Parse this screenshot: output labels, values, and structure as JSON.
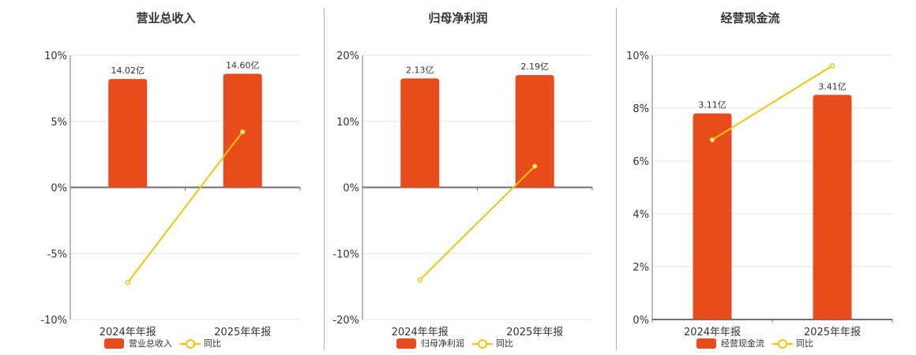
{
  "colors": {
    "bar": "#e84c1c",
    "line": "#f1c40f",
    "grid": "#dfe4ee",
    "axis": "#6e7079"
  },
  "legend": {
    "line_label": "同比"
  },
  "chart_data": [
    {
      "type": "bar+line",
      "title": "营业总收入",
      "categories": [
        "2024年年报",
        "2025年年报"
      ],
      "series": [
        {
          "name": "营业总收入",
          "type": "bar",
          "values": [
            14.02,
            14.6
          ],
          "unit": "亿",
          "labels": [
            "14.02亿",
            "14.60亿"
          ]
        },
        {
          "name": "同比",
          "type": "line",
          "values": [
            -7.2,
            4.2
          ],
          "unit": "%"
        }
      ],
      "yticks": [
        "10%",
        "5%",
        "0%",
        "-5%",
        "-10%"
      ],
      "ylim": [
        -10,
        10
      ],
      "bar_heights_pct": [
        8.2,
        8.6
      ],
      "grid": true,
      "legend_position": "bottom"
    },
    {
      "type": "bar+line",
      "title": "归母净利润",
      "categories": [
        "2024年年报",
        "2025年年报"
      ],
      "series": [
        {
          "name": "归母净利润",
          "type": "bar",
          "values": [
            2.13,
            2.19
          ],
          "unit": "亿",
          "labels": [
            "2.13亿",
            "2.19亿"
          ]
        },
        {
          "name": "同比",
          "type": "line",
          "values": [
            -14.0,
            3.2
          ],
          "unit": "%"
        }
      ],
      "yticks": [
        "20%",
        "10%",
        "0%",
        "-10%",
        "-20%"
      ],
      "ylim": [
        -20,
        20
      ],
      "bar_heights_pct": [
        16.5,
        17.0
      ],
      "grid": true,
      "legend_position": "bottom"
    },
    {
      "type": "bar+line",
      "title": "经营现金流",
      "categories": [
        "2024年年报",
        "2025年年报"
      ],
      "series": [
        {
          "name": "经营现金流",
          "type": "bar",
          "values": [
            3.11,
            3.41
          ],
          "unit": "亿",
          "labels": [
            "3.11亿",
            "3.41亿"
          ]
        },
        {
          "name": "同比",
          "type": "line",
          "values": [
            6.8,
            9.6
          ],
          "unit": "%"
        }
      ],
      "yticks": [
        "10%",
        "8%",
        "6%",
        "4%",
        "2%",
        "0%"
      ],
      "ylim": [
        0,
        10
      ],
      "bar_heights_pct": [
        7.8,
        8.5
      ],
      "grid": true,
      "legend_position": "bottom"
    }
  ]
}
